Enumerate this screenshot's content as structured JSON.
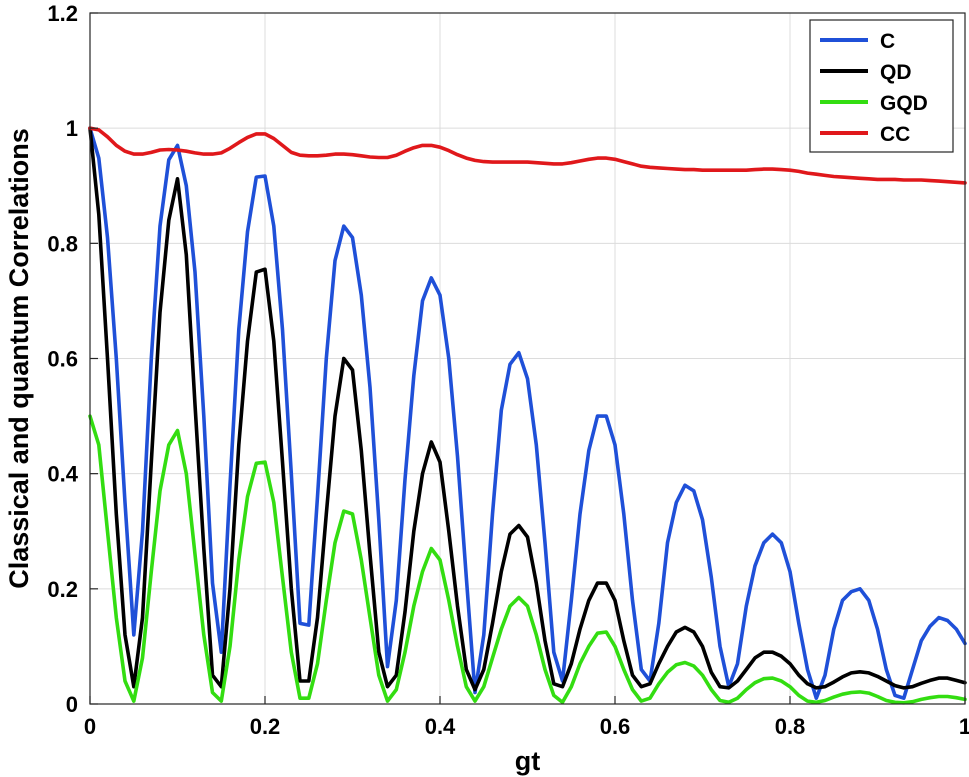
{
  "chart_data": {
    "type": "line",
    "xlabel": "gt",
    "ylabel": "Classical and quantum Correlations",
    "xlim": [
      0,
      1
    ],
    "ylim": [
      0,
      1.2
    ],
    "xticks": [
      "0",
      "0.2",
      "0.4",
      "0.6",
      "0.8",
      "1"
    ],
    "yticks": [
      "0",
      "0.2",
      "0.4",
      "0.6",
      "0.8",
      "1",
      "1.2"
    ],
    "grid": true,
    "legend_position": "top-right",
    "series": [
      {
        "name": "C",
        "color": "#1f50d8",
        "x": [
          0,
          0.01,
          0.02,
          0.03,
          0.04,
          0.05,
          0.06,
          0.07,
          0.08,
          0.09,
          0.1,
          0.11,
          0.12,
          0.13,
          0.14,
          0.15,
          0.16,
          0.17,
          0.18,
          0.19,
          0.2,
          0.21,
          0.22,
          0.23,
          0.24,
          0.25,
          0.26,
          0.27,
          0.28,
          0.29,
          0.3,
          0.31,
          0.32,
          0.33,
          0.34,
          0.35,
          0.36,
          0.37,
          0.38,
          0.39,
          0.4,
          0.41,
          0.42,
          0.43,
          0.44,
          0.45,
          0.46,
          0.47,
          0.48,
          0.49,
          0.5,
          0.51,
          0.52,
          0.53,
          0.54,
          0.55,
          0.56,
          0.57,
          0.58,
          0.59,
          0.6,
          0.61,
          0.62,
          0.63,
          0.64,
          0.65,
          0.66,
          0.67,
          0.68,
          0.69,
          0.7,
          0.71,
          0.72,
          0.73,
          0.74,
          0.75,
          0.76,
          0.77,
          0.78,
          0.79,
          0.8,
          0.81,
          0.82,
          0.83,
          0.84,
          0.85,
          0.86,
          0.87,
          0.88,
          0.89,
          0.9,
          0.91,
          0.92,
          0.93,
          0.94,
          0.95,
          0.96,
          0.97,
          0.98,
          0.99,
          1.0
        ],
        "y": [
          1.0,
          0.948,
          0.81,
          0.6,
          0.35,
          0.12,
          0.3,
          0.6,
          0.83,
          0.945,
          0.97,
          0.9,
          0.75,
          0.5,
          0.21,
          0.09,
          0.38,
          0.65,
          0.82,
          0.915,
          0.917,
          0.83,
          0.65,
          0.4,
          0.14,
          0.137,
          0.36,
          0.6,
          0.77,
          0.83,
          0.81,
          0.71,
          0.55,
          0.32,
          0.065,
          0.18,
          0.39,
          0.57,
          0.7,
          0.74,
          0.71,
          0.6,
          0.43,
          0.22,
          0.02,
          0.12,
          0.33,
          0.51,
          0.59,
          0.61,
          0.565,
          0.45,
          0.28,
          0.09,
          0.04,
          0.18,
          0.33,
          0.44,
          0.5,
          0.5,
          0.45,
          0.33,
          0.18,
          0.06,
          0.04,
          0.14,
          0.28,
          0.35,
          0.38,
          0.37,
          0.32,
          0.22,
          0.1,
          0.03,
          0.07,
          0.17,
          0.24,
          0.28,
          0.295,
          0.28,
          0.23,
          0.14,
          0.06,
          0.01,
          0.05,
          0.13,
          0.18,
          0.195,
          0.2,
          0.18,
          0.13,
          0.06,
          0.015,
          0.01,
          0.06,
          0.11,
          0.135,
          0.15,
          0.145,
          0.13,
          0.105
        ]
      },
      {
        "name": "QD",
        "color": "#000000",
        "x": [
          0,
          0.01,
          0.02,
          0.03,
          0.04,
          0.05,
          0.06,
          0.07,
          0.08,
          0.09,
          0.1,
          0.11,
          0.12,
          0.13,
          0.14,
          0.15,
          0.16,
          0.17,
          0.18,
          0.19,
          0.2,
          0.21,
          0.22,
          0.23,
          0.24,
          0.25,
          0.26,
          0.27,
          0.28,
          0.29,
          0.3,
          0.31,
          0.32,
          0.33,
          0.34,
          0.35,
          0.36,
          0.37,
          0.38,
          0.39,
          0.4,
          0.41,
          0.42,
          0.43,
          0.44,
          0.45,
          0.46,
          0.47,
          0.48,
          0.49,
          0.5,
          0.51,
          0.52,
          0.53,
          0.54,
          0.55,
          0.56,
          0.57,
          0.58,
          0.59,
          0.6,
          0.61,
          0.62,
          0.63,
          0.64,
          0.65,
          0.66,
          0.67,
          0.68,
          0.69,
          0.7,
          0.71,
          0.72,
          0.73,
          0.74,
          0.75,
          0.76,
          0.77,
          0.78,
          0.79,
          0.8,
          0.81,
          0.82,
          0.83,
          0.84,
          0.85,
          0.86,
          0.87,
          0.88,
          0.89,
          0.9,
          0.91,
          0.92,
          0.93,
          0.94,
          0.95,
          0.96,
          0.97,
          0.98,
          0.99,
          1.0
        ],
        "y": [
          1.0,
          0.85,
          0.6,
          0.33,
          0.12,
          0.03,
          0.15,
          0.42,
          0.68,
          0.84,
          0.912,
          0.78,
          0.52,
          0.27,
          0.05,
          0.03,
          0.2,
          0.45,
          0.63,
          0.75,
          0.755,
          0.63,
          0.42,
          0.2,
          0.04,
          0.04,
          0.15,
          0.33,
          0.5,
          0.6,
          0.58,
          0.44,
          0.26,
          0.09,
          0.03,
          0.05,
          0.16,
          0.3,
          0.4,
          0.455,
          0.42,
          0.3,
          0.17,
          0.06,
          0.025,
          0.06,
          0.14,
          0.23,
          0.295,
          0.31,
          0.29,
          0.21,
          0.11,
          0.035,
          0.03,
          0.07,
          0.13,
          0.18,
          0.21,
          0.21,
          0.18,
          0.11,
          0.05,
          0.03,
          0.035,
          0.07,
          0.1,
          0.125,
          0.133,
          0.125,
          0.1,
          0.055,
          0.03,
          0.028,
          0.04,
          0.06,
          0.08,
          0.09,
          0.09,
          0.083,
          0.07,
          0.05,
          0.035,
          0.028,
          0.03,
          0.038,
          0.047,
          0.054,
          0.056,
          0.054,
          0.048,
          0.04,
          0.032,
          0.028,
          0.03,
          0.036,
          0.041,
          0.045,
          0.045,
          0.041,
          0.037
        ]
      },
      {
        "name": "GQD",
        "color": "#33dd11",
        "x": [
          0,
          0.01,
          0.02,
          0.03,
          0.04,
          0.05,
          0.06,
          0.07,
          0.08,
          0.09,
          0.1,
          0.11,
          0.12,
          0.13,
          0.14,
          0.15,
          0.16,
          0.17,
          0.18,
          0.19,
          0.2,
          0.21,
          0.22,
          0.23,
          0.24,
          0.25,
          0.26,
          0.27,
          0.28,
          0.29,
          0.3,
          0.31,
          0.32,
          0.33,
          0.34,
          0.35,
          0.36,
          0.37,
          0.38,
          0.39,
          0.4,
          0.41,
          0.42,
          0.43,
          0.44,
          0.45,
          0.46,
          0.47,
          0.48,
          0.49,
          0.5,
          0.51,
          0.52,
          0.53,
          0.54,
          0.55,
          0.56,
          0.57,
          0.58,
          0.59,
          0.6,
          0.61,
          0.62,
          0.63,
          0.64,
          0.65,
          0.66,
          0.67,
          0.68,
          0.69,
          0.7,
          0.71,
          0.72,
          0.73,
          0.74,
          0.75,
          0.76,
          0.77,
          0.78,
          0.79,
          0.8,
          0.81,
          0.82,
          0.83,
          0.84,
          0.85,
          0.86,
          0.87,
          0.88,
          0.89,
          0.9,
          0.91,
          0.92,
          0.93,
          0.94,
          0.95,
          0.96,
          0.97,
          0.98,
          0.99,
          1.0
        ],
        "y": [
          0.5,
          0.45,
          0.3,
          0.15,
          0.04,
          0.005,
          0.08,
          0.23,
          0.37,
          0.45,
          0.475,
          0.4,
          0.26,
          0.12,
          0.02,
          0.005,
          0.1,
          0.25,
          0.36,
          0.418,
          0.42,
          0.35,
          0.22,
          0.09,
          0.01,
          0.01,
          0.07,
          0.18,
          0.28,
          0.335,
          0.33,
          0.25,
          0.15,
          0.05,
          0.005,
          0.025,
          0.09,
          0.17,
          0.23,
          0.27,
          0.25,
          0.18,
          0.1,
          0.03,
          0.005,
          0.03,
          0.08,
          0.13,
          0.17,
          0.185,
          0.17,
          0.12,
          0.06,
          0.015,
          0.003,
          0.03,
          0.07,
          0.1,
          0.123,
          0.125,
          0.1,
          0.06,
          0.025,
          0.005,
          0.01,
          0.035,
          0.055,
          0.068,
          0.072,
          0.066,
          0.05,
          0.025,
          0.006,
          0.003,
          0.01,
          0.025,
          0.037,
          0.044,
          0.045,
          0.04,
          0.03,
          0.015,
          0.005,
          0.003,
          0.006,
          0.012,
          0.017,
          0.02,
          0.021,
          0.019,
          0.013,
          0.006,
          0.003,
          0.002,
          0.004,
          0.008,
          0.011,
          0.013,
          0.013,
          0.011,
          0.008
        ]
      },
      {
        "name": "CC",
        "color": "#e0181b",
        "x": [
          0,
          0.01,
          0.02,
          0.03,
          0.04,
          0.05,
          0.06,
          0.07,
          0.08,
          0.09,
          0.1,
          0.11,
          0.12,
          0.13,
          0.14,
          0.15,
          0.16,
          0.17,
          0.18,
          0.19,
          0.2,
          0.21,
          0.22,
          0.23,
          0.24,
          0.25,
          0.26,
          0.27,
          0.28,
          0.29,
          0.3,
          0.31,
          0.32,
          0.33,
          0.34,
          0.35,
          0.36,
          0.37,
          0.38,
          0.39,
          0.4,
          0.41,
          0.42,
          0.43,
          0.44,
          0.45,
          0.46,
          0.47,
          0.48,
          0.49,
          0.5,
          0.51,
          0.52,
          0.53,
          0.54,
          0.55,
          0.56,
          0.57,
          0.58,
          0.59,
          0.6,
          0.61,
          0.62,
          0.63,
          0.64,
          0.65,
          0.66,
          0.67,
          0.68,
          0.69,
          0.7,
          0.71,
          0.72,
          0.73,
          0.74,
          0.75,
          0.76,
          0.77,
          0.78,
          0.79,
          0.8,
          0.81,
          0.82,
          0.83,
          0.84,
          0.85,
          0.86,
          0.87,
          0.88,
          0.89,
          0.9,
          0.91,
          0.92,
          0.93,
          0.94,
          0.95,
          0.96,
          0.97,
          0.98,
          0.99,
          1.0
        ],
        "y": [
          1.0,
          0.997,
          0.985,
          0.97,
          0.96,
          0.955,
          0.955,
          0.958,
          0.962,
          0.963,
          0.962,
          0.96,
          0.957,
          0.955,
          0.955,
          0.957,
          0.965,
          0.975,
          0.984,
          0.99,
          0.99,
          0.982,
          0.97,
          0.958,
          0.953,
          0.952,
          0.952,
          0.953,
          0.955,
          0.955,
          0.954,
          0.952,
          0.95,
          0.949,
          0.949,
          0.953,
          0.96,
          0.966,
          0.97,
          0.97,
          0.967,
          0.961,
          0.954,
          0.948,
          0.944,
          0.942,
          0.941,
          0.941,
          0.941,
          0.941,
          0.941,
          0.94,
          0.939,
          0.938,
          0.938,
          0.94,
          0.943,
          0.946,
          0.948,
          0.948,
          0.946,
          0.942,
          0.938,
          0.934,
          0.932,
          0.931,
          0.93,
          0.929,
          0.928,
          0.928,
          0.927,
          0.927,
          0.927,
          0.927,
          0.927,
          0.927,
          0.928,
          0.929,
          0.929,
          0.928,
          0.927,
          0.925,
          0.922,
          0.92,
          0.918,
          0.916,
          0.915,
          0.914,
          0.913,
          0.912,
          0.911,
          0.911,
          0.911,
          0.91,
          0.91,
          0.91,
          0.909,
          0.908,
          0.907,
          0.906,
          0.905
        ]
      }
    ]
  }
}
